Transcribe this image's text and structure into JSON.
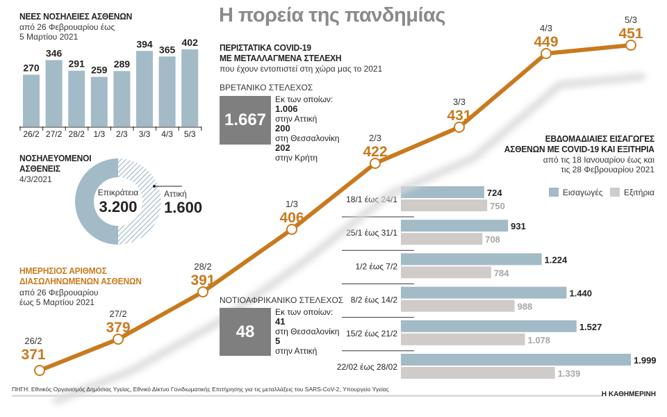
{
  "main_title": "Η πορεία της πανδημίας",
  "colors": {
    "orange": "#c87a1e",
    "blue_bar": "#a3bac7",
    "gray_bar": "#cfcbc9",
    "box_gray": "#7f7f7f"
  },
  "chart_data": [
    {
      "type": "bar",
      "title": "ΝΕΕΣ ΝΟΣΗΛΕΙΕΣ ΑΣΘΕΝΩΝ",
      "subtitle_lines": [
        "από 26 Φεβρουαρίου έως",
        "5 Μαρτίου 2021"
      ],
      "categories": [
        "26/2",
        "27/2",
        "28/2",
        "1/3",
        "2/3",
        "3/3",
        "4/3",
        "5/3"
      ],
      "values": [
        270,
        346,
        291,
        259,
        289,
        394,
        365,
        402
      ],
      "value_labels": [
        "270",
        "346",
        "291",
        "259",
        "289",
        "394",
        "365",
        "402"
      ]
    },
    {
      "type": "pie",
      "title_lines": [
        "ΝΟΣΗΛΕΥΟΜΕΝΟΙ",
        "ΑΣΘΕΝΕΙΣ"
      ],
      "date": "4/3/2021",
      "total_label": "Επικράτεια",
      "total_value": "3.200",
      "slice_label": "Αττική",
      "slice_value": "1.600",
      "values": [
        3200,
        1600
      ]
    },
    {
      "type": "line",
      "title_lines": [
        "ΗΜΕΡΗΣΙΟΣ ΑΡΙΘΜΟΣ",
        "ΔΙΑΣΩΛΗΝΩΜΕΝΩΝ ΑΣΘΕΝΩΝ"
      ],
      "subtitle_lines": [
        "από  26 Φεβρουαρίου",
        "έως 5 Μαρτίου 2021"
      ],
      "x": [
        "26/2",
        "27/2",
        "28/2",
        "1/3",
        "2/3",
        "3/3",
        "4/3",
        "5/3"
      ],
      "values": [
        371,
        379,
        391,
        406,
        422,
        431,
        449,
        451
      ]
    },
    {
      "type": "bar",
      "orientation": "horizontal",
      "title_lines": [
        "ΕΒΔΟΜΑΔΙΑΙΕΣ ΕΙΣΑΓΩΓΕΣ",
        "ΑΣΘΕΝΩΝ ΜΕ COVID-19 ΚΑΙ ΕΞΙΤΗΡΙΑ"
      ],
      "subtitle_lines": [
        "από τις 18 Ιανουαρίου έως και",
        "τις 28 Φεβρουαρίου 2021"
      ],
      "legend_position": "top-right",
      "categories": [
        "18/1 έως 24/1",
        "25/1 έως 31/1",
        "1/2 έως 7/2",
        "8/2 έως 14/2",
        "15/2 έως 21/2",
        "22/02 έως 28/02"
      ],
      "series": [
        {
          "name": "Εισαγωγές",
          "values": [
            724,
            931,
            1224,
            1440,
            1527,
            1999
          ],
          "labels": [
            "724",
            "931",
            "1.224",
            "1.440",
            "1.527",
            "1.999"
          ]
        },
        {
          "name": "Εξιτήρια",
          "values": [
            750,
            708,
            784,
            988,
            1078,
            1339
          ],
          "labels": [
            "750",
            "708",
            "784",
            "988",
            "1.078",
            "1.339"
          ]
        }
      ]
    }
  ],
  "variants": {
    "title_lines": [
      "ΠΕΡΙΣΤΑΤΙΚΑ COVID-19",
      "ΜΕ ΜΕΤΑΛΛΑΓΜΕΝΑ ΣΤΕΛΕΧΗ"
    ],
    "subtitle": "που έχουν εντοπιστεί στη χώρα μας το 2021",
    "uk": {
      "label": "ΒΡΕΤΑΝΙΚΟ ΣΤΕΛΕΧΟΣ",
      "total": "1.667",
      "intro": "Εκ των οποίων:",
      "items": [
        {
          "value": "1.006",
          "place": "στην Αττική"
        },
        {
          "value": "200",
          "place": "στη Θεσσαλονίκη"
        },
        {
          "value": "202",
          "place": "στην Κρήτη"
        }
      ]
    },
    "sa": {
      "label": "ΝΟΤΙΟΑΦΡΙΚΑΝΙΚΟ ΣΤΕΛΕΧΟΣ",
      "total": "48",
      "intro": "Εκ των οποίων:",
      "items": [
        {
          "value": "41",
          "place": "στη Θεσσαλονίκη"
        },
        {
          "value": "5",
          "place": "στην Αττική"
        }
      ]
    }
  },
  "footer": {
    "source": "ΠΗΓΗ: Εθνικός Οργανισμός Δημόσιας Υγείας, Εθνικό Δίκτυο Γονιδιωματικής Επιτήρησης για τις μεταλλάξεις του SARS-CoV-2, Υπουργείο Υγείας",
    "brand": "Η ΚΑΘΗΜΕΡΙΝΗ"
  }
}
